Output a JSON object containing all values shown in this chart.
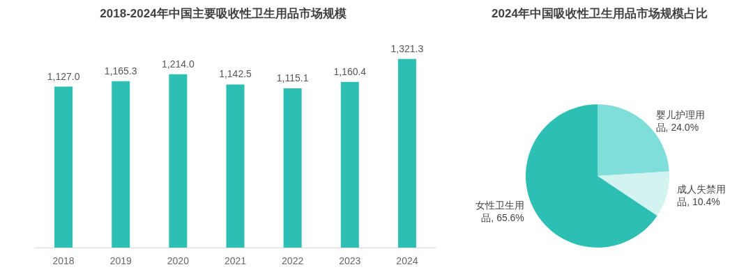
{
  "chart_data": [
    {
      "type": "bar",
      "title": "2018-2024年中国主要吸收性卫生用品市场规模",
      "categories": [
        "2018",
        "2019",
        "2020",
        "2021",
        "2022",
        "2023",
        "2024"
      ],
      "values": [
        1127.0,
        1165.3,
        1214.0,
        1142.5,
        1115.1,
        1160.4,
        1321.3
      ],
      "value_labels": [
        "1,127.0",
        "1,165.3",
        "1,214.0",
        "1,142.5",
        "1,115.1",
        "1,160.4",
        "1,321.3"
      ],
      "color": "#2ebfb4",
      "tick_labels": "x",
      "legend": false
    },
    {
      "type": "pie",
      "title": "2024年中国吸收性卫生用品市场规模占比",
      "categories": [
        "婴儿护理用品, 24.0%",
        "成人失禁用品, 10.4%",
        "女性卫生用品, 65.6%"
      ],
      "values": [
        24.0,
        10.4,
        65.6
      ],
      "colors": [
        "#7fded8",
        "#d3f3f0",
        "#2ebfb4"
      ],
      "legend": false
    }
  ]
}
